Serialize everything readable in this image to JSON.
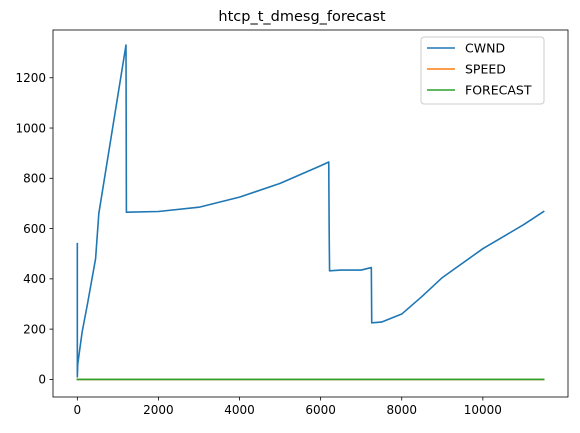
{
  "chart_data": {
    "type": "line",
    "title": "htcp_t_dmesg_forecast",
    "xlabel": "",
    "ylabel": "",
    "xlim": [
      -600,
      12100
    ],
    "ylim": [
      -70,
      1390
    ],
    "xticks": [
      0,
      2000,
      4000,
      6000,
      8000,
      10000
    ],
    "yticks": [
      0,
      200,
      400,
      600,
      800,
      1000,
      1200
    ],
    "xtick_labels": [
      "0",
      "2000",
      "4000",
      "6000",
      "8000",
      "10000"
    ],
    "ytick_labels": [
      "0",
      "200",
      "400",
      "600",
      "800",
      "1000",
      "1200"
    ],
    "grid": false,
    "legend_position": "top-right",
    "series": [
      {
        "name": "CWND",
        "color": "#1f77b4",
        "x": [
          0,
          0,
          10,
          60,
          120,
          250,
          450,
          530,
          1200,
          1210,
          2000,
          3000,
          4000,
          5000,
          6000,
          6200,
          6210,
          6220,
          6500,
          7000,
          7250,
          7260,
          7500,
          8000,
          8500,
          9000,
          10000,
          11000,
          11500
        ],
        "y": [
          540,
          10,
          60,
          120,
          190,
          300,
          480,
          660,
          1330,
          665,
          668,
          685,
          725,
          780,
          850,
          865,
          600,
          432,
          435,
          435,
          445,
          225,
          228,
          260,
          330,
          405,
          520,
          615,
          668
        ]
      },
      {
        "name": "SPEED",
        "color": "#ff7f0e",
        "x": [
          0,
          11500
        ],
        "y": [
          0,
          0
        ]
      },
      {
        "name": "FORECAST",
        "color": "#2ca02c",
        "x": [
          0,
          11500
        ],
        "y": [
          0,
          0
        ]
      }
    ]
  }
}
